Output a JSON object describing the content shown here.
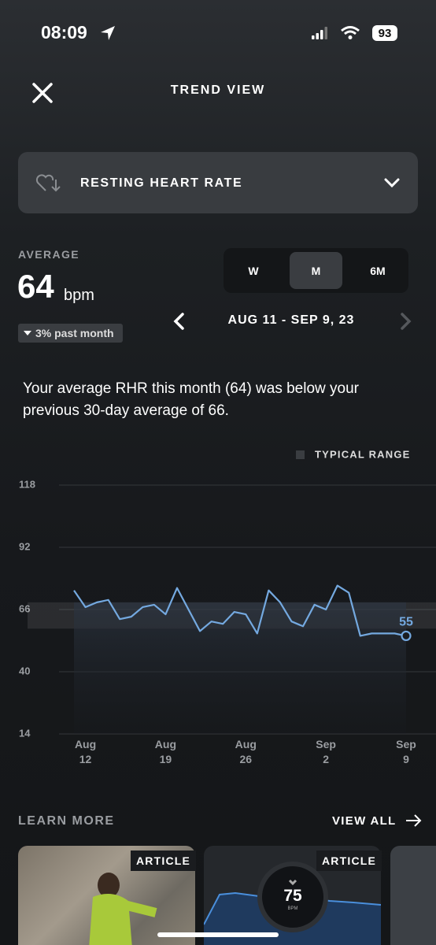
{
  "status_bar": {
    "time": "08:09",
    "battery": "93"
  },
  "header": {
    "title": "TREND VIEW"
  },
  "metric_selector": {
    "label": "RESTING HEART RATE"
  },
  "summary": {
    "label": "AVERAGE",
    "value": "64",
    "unit": "bpm",
    "change": "3% past month"
  },
  "period_tabs": [
    "W",
    "M",
    "6M"
  ],
  "date_range": "AUG 11 - SEP 9, 23",
  "description": "Your average RHR this month (64) was below your previous 30-day average of 66.",
  "chart_data": {
    "type": "line",
    "categories": [
      null,
      "Aug 12",
      null,
      null,
      null,
      null,
      null,
      null,
      "Aug 19",
      null,
      null,
      null,
      null,
      null,
      null,
      "Aug 26",
      null,
      null,
      null,
      null,
      null,
      null,
      "Sep 2",
      null,
      null,
      null,
      null,
      null,
      null,
      "Sep 9"
    ],
    "values": [
      74,
      67,
      69,
      70,
      62,
      63,
      67,
      68,
      64,
      75,
      66,
      57,
      61,
      60,
      65,
      64,
      56,
      74,
      69,
      61,
      59,
      68,
      66,
      76,
      73,
      55,
      56,
      56,
      56,
      55
    ],
    "color": "#74a9e0",
    "ylim": [
      14,
      118
    ],
    "yticks": [
      14,
      40,
      66,
      92,
      118
    ],
    "grid": true,
    "typical_range": {
      "label": "TYPICAL RANGE",
      "values": [
        58,
        69
      ]
    }
  },
  "learn_more": {
    "title": "LEARN MORE",
    "view_all": "VIEW ALL",
    "cards": [
      {
        "tag": "ARTICLE"
      },
      {
        "tag": "ARTICLE",
        "value": "75",
        "unit": "BPM"
      }
    ]
  }
}
